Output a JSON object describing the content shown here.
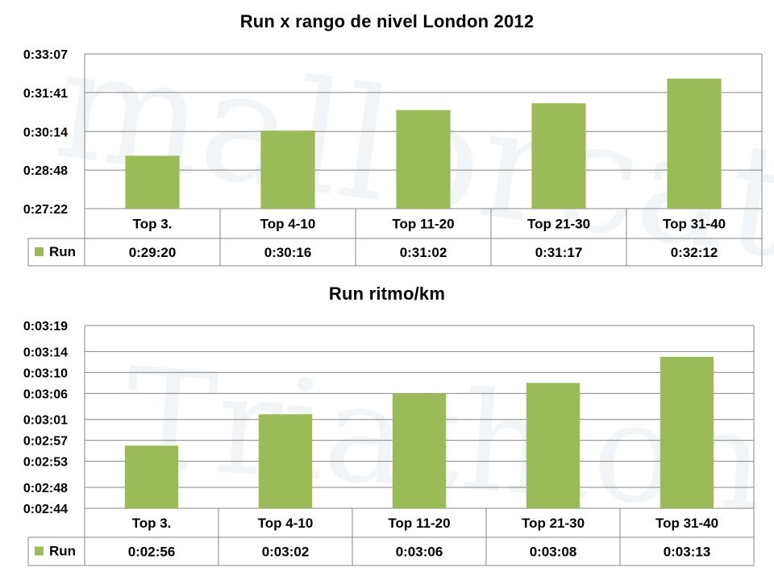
{
  "charts": [
    {
      "title": "Run x rango de nivel London 2012",
      "legend_label": "Run",
      "yticks": [
        "0:33:07",
        "0:31:41",
        "0:30:14",
        "0:28:48",
        "0:27:22"
      ],
      "ytick_values": [
        1987,
        1901,
        1814,
        1728,
        1642
      ],
      "categories": [
        "Top 3.",
        "Top 4-10",
        "Top 11-20",
        "Top 21-30",
        "Top 31-40"
      ],
      "value_labels": [
        "0:29:20",
        "0:30:16",
        "0:31:02",
        "0:31:17",
        "0:32:12"
      ]
    },
    {
      "title": "Run ritmo/km",
      "legend_label": "Run",
      "yticks": [
        "0:03:19",
        "0:03:14",
        "0:03:10",
        "0:03:06",
        "0:03:01",
        "0:02:57",
        "0:02:53",
        "0:02:48",
        "0:02:44"
      ],
      "ytick_values": [
        199,
        194,
        190,
        186,
        181,
        177,
        173,
        168,
        164
      ],
      "categories": [
        "Top 3.",
        "Top 4-10",
        "Top 11-20",
        "Top 21-30",
        "Top 31-40"
      ],
      "value_labels": [
        "0:02:56",
        "0:03:02",
        "0:03:06",
        "0:03:08",
        "0:03:13"
      ]
    }
  ],
  "chart_data": [
    {
      "type": "bar",
      "title": "Run x rango de nivel London 2012",
      "categories": [
        "Top 3.",
        "Top 4-10",
        "Top 11-20",
        "Top 21-30",
        "Top 31-40"
      ],
      "series": [
        {
          "name": "Run",
          "values": [
            1760,
            1816,
            1862,
            1877,
            1932
          ],
          "color": "#9bbb59"
        }
      ],
      "ylim": [
        1642,
        1987
      ],
      "y_unit": "seconds (h:mm:ss)",
      "grid": true,
      "legend": "data-table"
    },
    {
      "type": "bar",
      "title": "Run ritmo/km",
      "categories": [
        "Top 3.",
        "Top 4-10",
        "Top 11-20",
        "Top 21-30",
        "Top 31-40"
      ],
      "series": [
        {
          "name": "Run",
          "values": [
            176,
            182,
            186,
            188,
            193
          ],
          "color": "#9bbb59"
        }
      ],
      "ylim": [
        164,
        199
      ],
      "y_unit": "seconds (h:mm:ss)",
      "grid": true,
      "legend": "data-table"
    }
  ],
  "colors": {
    "bar": "#9bbb59",
    "grid": "#868686",
    "watermark": "#eef2f5"
  }
}
